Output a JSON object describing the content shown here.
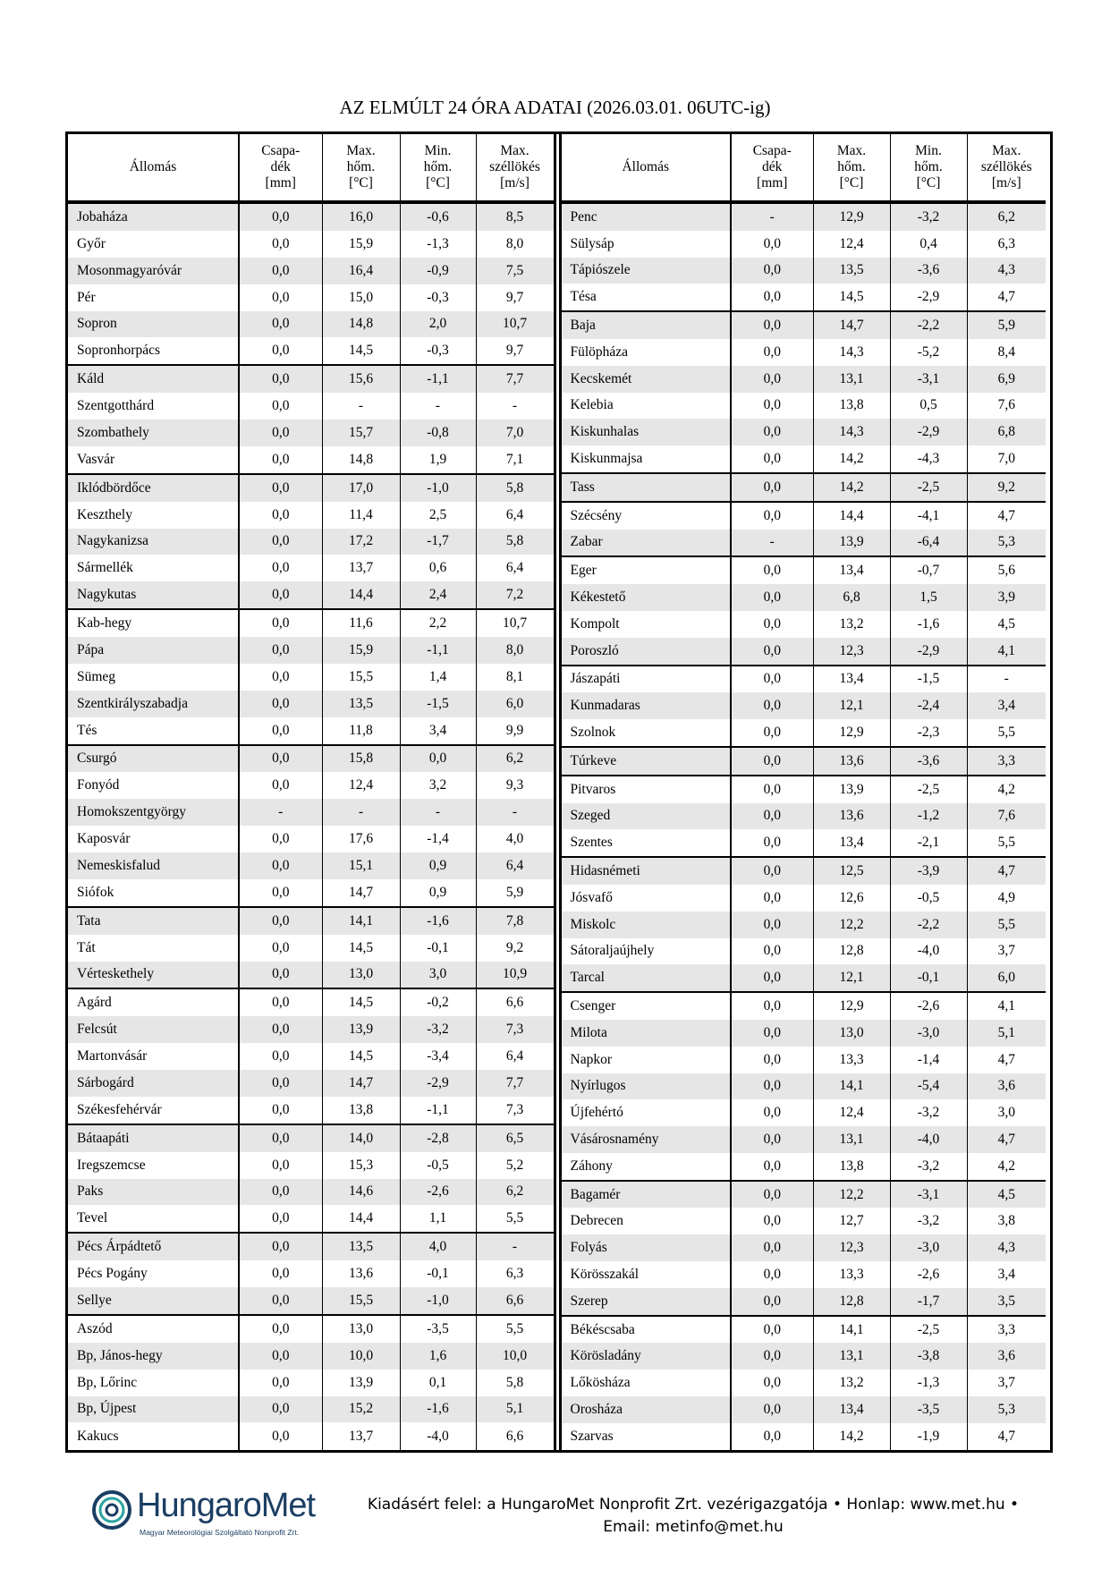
{
  "title": "AZ ELMÚLT 24 ÓRA ADATAI (2026.03.01. 06UTC-ig)",
  "columns": [
    [
      "Állomás"
    ],
    [
      "Csapa-",
      "dék",
      "[mm]"
    ],
    [
      "Max.",
      "hőm.",
      "[°C]"
    ],
    [
      "Min.",
      "hőm.",
      "[°C]"
    ],
    [
      "Max.",
      "széllökés",
      "[m/s]"
    ]
  ],
  "left_groups": [
    [
      [
        "Jobaháza",
        "0,0",
        "16,0",
        "-0,6",
        "8,5"
      ],
      [
        "Győr",
        "0,0",
        "15,9",
        "-1,3",
        "8,0"
      ],
      [
        "Mosonmagyaróvár",
        "0,0",
        "16,4",
        "-0,9",
        "7,5"
      ],
      [
        "Pér",
        "0,0",
        "15,0",
        "-0,3",
        "9,7"
      ],
      [
        "Sopron",
        "0,0",
        "14,8",
        "2,0",
        "10,7"
      ],
      [
        "Sopronhorpács",
        "0,0",
        "14,5",
        "-0,3",
        "9,7"
      ]
    ],
    [
      [
        "Káld",
        "0,0",
        "15,6",
        "-1,1",
        "7,7"
      ],
      [
        "Szentgotthárd",
        "0,0",
        "-",
        "-",
        "-"
      ],
      [
        "Szombathely",
        "0,0",
        "15,7",
        "-0,8",
        "7,0"
      ],
      [
        "Vasvár",
        "0,0",
        "14,8",
        "1,9",
        "7,1"
      ]
    ],
    [
      [
        "Iklódbördőce",
        "0,0",
        "17,0",
        "-1,0",
        "5,8"
      ],
      [
        "Keszthely",
        "0,0",
        "11,4",
        "2,5",
        "6,4"
      ],
      [
        "Nagykanizsa",
        "0,0",
        "17,2",
        "-1,7",
        "5,8"
      ],
      [
        "Sármellék",
        "0,0",
        "13,7",
        "0,6",
        "6,4"
      ],
      [
        "Nagykutas",
        "0,0",
        "14,4",
        "2,4",
        "7,2"
      ]
    ],
    [
      [
        "Kab-hegy",
        "0,0",
        "11,6",
        "2,2",
        "10,7"
      ],
      [
        "Pápa",
        "0,0",
        "15,9",
        "-1,1",
        "8,0"
      ],
      [
        "Sümeg",
        "0,0",
        "15,5",
        "1,4",
        "8,1"
      ],
      [
        "Szentkirályszabadja",
        "0,0",
        "13,5",
        "-1,5",
        "6,0"
      ],
      [
        "Tés",
        "0,0",
        "11,8",
        "3,4",
        "9,9"
      ]
    ],
    [
      [
        "Csurgó",
        "0,0",
        "15,8",
        "0,0",
        "6,2"
      ],
      [
        "Fonyód",
        "0,0",
        "12,4",
        "3,2",
        "9,3"
      ],
      [
        "Homokszentgyörgy",
        "-",
        "-",
        "-",
        "-"
      ],
      [
        "Kaposvár",
        "0,0",
        "17,6",
        "-1,4",
        "4,0"
      ],
      [
        "Nemeskisfalud",
        "0,0",
        "15,1",
        "0,9",
        "6,4"
      ],
      [
        "Siófok",
        "0,0",
        "14,7",
        "0,9",
        "5,9"
      ]
    ],
    [
      [
        "Tata",
        "0,0",
        "14,1",
        "-1,6",
        "7,8"
      ],
      [
        "Tát",
        "0,0",
        "14,5",
        "-0,1",
        "9,2"
      ],
      [
        "Vérteskethely",
        "0,0",
        "13,0",
        "3,0",
        "10,9"
      ]
    ],
    [
      [
        "Agárd",
        "0,0",
        "14,5",
        "-0,2",
        "6,6"
      ],
      [
        "Felcsút",
        "0,0",
        "13,9",
        "-3,2",
        "7,3"
      ],
      [
        "Martonvásár",
        "0,0",
        "14,5",
        "-3,4",
        "6,4"
      ],
      [
        "Sárbogárd",
        "0,0",
        "14,7",
        "-2,9",
        "7,7"
      ],
      [
        "Székesfehérvár",
        "0,0",
        "13,8",
        "-1,1",
        "7,3"
      ]
    ],
    [
      [
        "Bátaapáti",
        "0,0",
        "14,0",
        "-2,8",
        "6,5"
      ],
      [
        "Iregszemcse",
        "0,0",
        "15,3",
        "-0,5",
        "5,2"
      ],
      [
        "Paks",
        "0,0",
        "14,6",
        "-2,6",
        "6,2"
      ],
      [
        "Tevel",
        "0,0",
        "14,4",
        "1,1",
        "5,5"
      ]
    ],
    [
      [
        "Pécs Árpádtető",
        "0,0",
        "13,5",
        "4,0",
        "-"
      ],
      [
        "Pécs Pogány",
        "0,0",
        "13,6",
        "-0,1",
        "6,3"
      ],
      [
        "Sellye",
        "0,0",
        "15,5",
        "-1,0",
        "6,6"
      ]
    ],
    [
      [
        "Aszód",
        "0,0",
        "13,0",
        "-3,5",
        "5,5"
      ],
      [
        "Bp, János-hegy",
        "0,0",
        "10,0",
        "1,6",
        "10,0"
      ],
      [
        "Bp, Lőrinc",
        "0,0",
        "13,9",
        "0,1",
        "5,8"
      ],
      [
        "Bp, Újpest",
        "0,0",
        "15,2",
        "-1,6",
        "5,1"
      ],
      [
        "Kakucs",
        "0,0",
        "13,7",
        "-4,0",
        "6,6"
      ]
    ]
  ],
  "right_groups": [
    [
      [
        "Penc",
        "-",
        "12,9",
        "-3,2",
        "6,2"
      ],
      [
        "Sülysáp",
        "0,0",
        "12,4",
        "0,4",
        "6,3"
      ],
      [
        "Tápiószele",
        "0,0",
        "13,5",
        "-3,6",
        "4,3"
      ],
      [
        "Tésa",
        "0,0",
        "14,5",
        "-2,9",
        "4,7"
      ]
    ],
    [
      [
        "Baja",
        "0,0",
        "14,7",
        "-2,2",
        "5,9"
      ],
      [
        "Fülöpháza",
        "0,0",
        "14,3",
        "-5,2",
        "8,4"
      ],
      [
        "Kecskemét",
        "0,0",
        "13,1",
        "-3,1",
        "6,9"
      ],
      [
        "Kelebia",
        "0,0",
        "13,8",
        "0,5",
        "7,6"
      ],
      [
        "Kiskunhalas",
        "0,0",
        "14,3",
        "-2,9",
        "6,8"
      ],
      [
        "Kiskunmajsa",
        "0,0",
        "14,2",
        "-4,3",
        "7,0"
      ]
    ],
    [
      [
        "Tass",
        "0,0",
        "14,2",
        "-2,5",
        "9,2"
      ]
    ],
    [
      [
        "Szécsény",
        "0,0",
        "14,4",
        "-4,1",
        "4,7"
      ],
      [
        "Zabar",
        "-",
        "13,9",
        "-6,4",
        "5,3"
      ]
    ],
    [
      [
        "Eger",
        "0,0",
        "13,4",
        "-0,7",
        "5,6"
      ],
      [
        "Kékestető",
        "0,0",
        "6,8",
        "1,5",
        "3,9"
      ],
      [
        "Kompolt",
        "0,0",
        "13,2",
        "-1,6",
        "4,5"
      ],
      [
        "Poroszló",
        "0,0",
        "12,3",
        "-2,9",
        "4,1"
      ]
    ],
    [
      [
        "Jászapáti",
        "0,0",
        "13,4",
        "-1,5",
        "-"
      ],
      [
        "Kunmadaras",
        "0,0",
        "12,1",
        "-2,4",
        "3,4"
      ],
      [
        "Szolnok",
        "0,0",
        "12,9",
        "-2,3",
        "5,5"
      ]
    ],
    [
      [
        "Túrkeve",
        "0,0",
        "13,6",
        "-3,6",
        "3,3"
      ]
    ],
    [
      [
        "Pitvaros",
        "0,0",
        "13,9",
        "-2,5",
        "4,2"
      ],
      [
        "Szeged",
        "0,0",
        "13,6",
        "-1,2",
        "7,6"
      ],
      [
        "Szentes",
        "0,0",
        "13,4",
        "-2,1",
        "5,5"
      ]
    ],
    [
      [
        "Hidasnémeti",
        "0,0",
        "12,5",
        "-3,9",
        "4,7"
      ],
      [
        "Jósvafő",
        "0,0",
        "12,6",
        "-0,5",
        "4,9"
      ],
      [
        "Miskolc",
        "0,0",
        "12,2",
        "-2,2",
        "5,5"
      ],
      [
        "Sátoraljaújhely",
        "0,0",
        "12,8",
        "-4,0",
        "3,7"
      ],
      [
        "Tarcal",
        "0,0",
        "12,1",
        "-0,1",
        "6,0"
      ]
    ],
    [
      [
        "Csenger",
        "0,0",
        "12,9",
        "-2,6",
        "4,1"
      ],
      [
        "Milota",
        "0,0",
        "13,0",
        "-3,0",
        "5,1"
      ],
      [
        "Napkor",
        "0,0",
        "13,3",
        "-1,4",
        "4,7"
      ],
      [
        "Nyírlugos",
        "0,0",
        "14,1",
        "-5,4",
        "3,6"
      ],
      [
        "Újfehértó",
        "0,0",
        "12,4",
        "-3,2",
        "3,0"
      ],
      [
        "Vásárosnamény",
        "0,0",
        "13,1",
        "-4,0",
        "4,7"
      ],
      [
        "Záhony",
        "0,0",
        "13,8",
        "-3,2",
        "4,2"
      ]
    ],
    [
      [
        "Bagamér",
        "0,0",
        "12,2",
        "-3,1",
        "4,5"
      ],
      [
        "Debrecen",
        "0,0",
        "12,7",
        "-3,2",
        "3,8"
      ],
      [
        "Folyás",
        "0,0",
        "12,3",
        "-3,0",
        "4,3"
      ],
      [
        "Körösszakál",
        "0,0",
        "13,3",
        "-2,6",
        "3,4"
      ],
      [
        "Szerep",
        "0,0",
        "12,8",
        "-1,7",
        "3,5"
      ]
    ],
    [
      [
        "Békéscsaba",
        "0,0",
        "14,1",
        "-2,5",
        "3,3"
      ],
      [
        "Körösladány",
        "0,0",
        "13,1",
        "-3,8",
        "3,6"
      ],
      [
        "Lőkösháza",
        "0,0",
        "13,2",
        "-1,3",
        "3,7"
      ],
      [
        "Orosháza",
        "0,0",
        "13,4",
        "-3,5",
        "5,3"
      ],
      [
        "Szarvas",
        "0,0",
        "14,2",
        "-1,9",
        "4,7"
      ]
    ]
  ],
  "footer": {
    "logo_text": "HungaroMet",
    "logo_subtitle": "Magyar Meteorológiai Szolgáltató Nonprofit Zrt.",
    "line1": "Kiadásért felel: a HungaroMet Nonprofit Zrt. vezérigazgatója • Honlap: www.met.hu •",
    "line2": "Email: metinfo@met.hu"
  },
  "colors": {
    "row_shade": "#e6e6e6",
    "logo": "#1b3e63",
    "logo_accent": "#2aa3a0"
  }
}
